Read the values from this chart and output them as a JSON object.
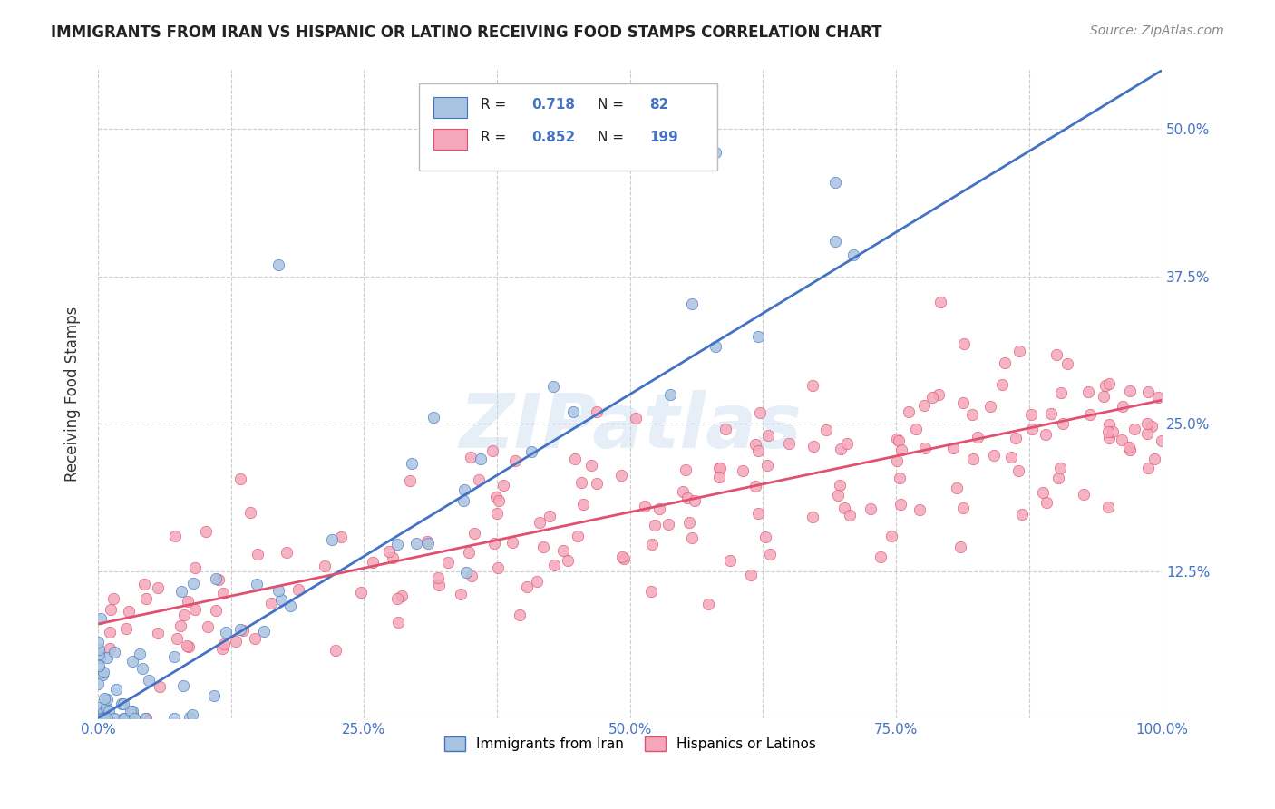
{
  "title": "IMMIGRANTS FROM IRAN VS HISPANIC OR LATINO RECEIVING FOOD STAMPS CORRELATION CHART",
  "source": "Source: ZipAtlas.com",
  "ylabel": "Receiving Food Stamps",
  "xlim": [
    0.0,
    1.0
  ],
  "ylim": [
    0.0,
    0.55
  ],
  "x_ticks": [
    0.0,
    0.125,
    0.25,
    0.375,
    0.5,
    0.625,
    0.75,
    0.875,
    1.0
  ],
  "x_tick_labels": [
    "0.0%",
    "",
    "25.0%",
    "",
    "50.0%",
    "",
    "75.0%",
    "",
    "100.0%"
  ],
  "y_ticks": [
    0.0,
    0.125,
    0.25,
    0.375,
    0.5
  ],
  "y_tick_labels": [
    "",
    "12.5%",
    "25.0%",
    "37.5%",
    "50.0%"
  ],
  "iran_R": 0.718,
  "iran_N": 82,
  "latino_R": 0.852,
  "latino_N": 199,
  "iran_color": "#a8c4e0",
  "iran_line_color": "#4472c4",
  "latino_color": "#f4a7b9",
  "latino_line_color": "#e05070",
  "iran_trend_x": [
    0.0,
    1.0
  ],
  "iran_trend_y": [
    0.0,
    0.55
  ],
  "latino_trend_x": [
    0.0,
    1.0
  ],
  "latino_trend_y": [
    0.08,
    0.27
  ],
  "watermark": "ZIPatlas",
  "legend_label_iran": "Immigrants from Iran",
  "legend_label_latino": "Hispanics or Latinos",
  "background_color": "#ffffff",
  "grid_color": "#cccccc"
}
